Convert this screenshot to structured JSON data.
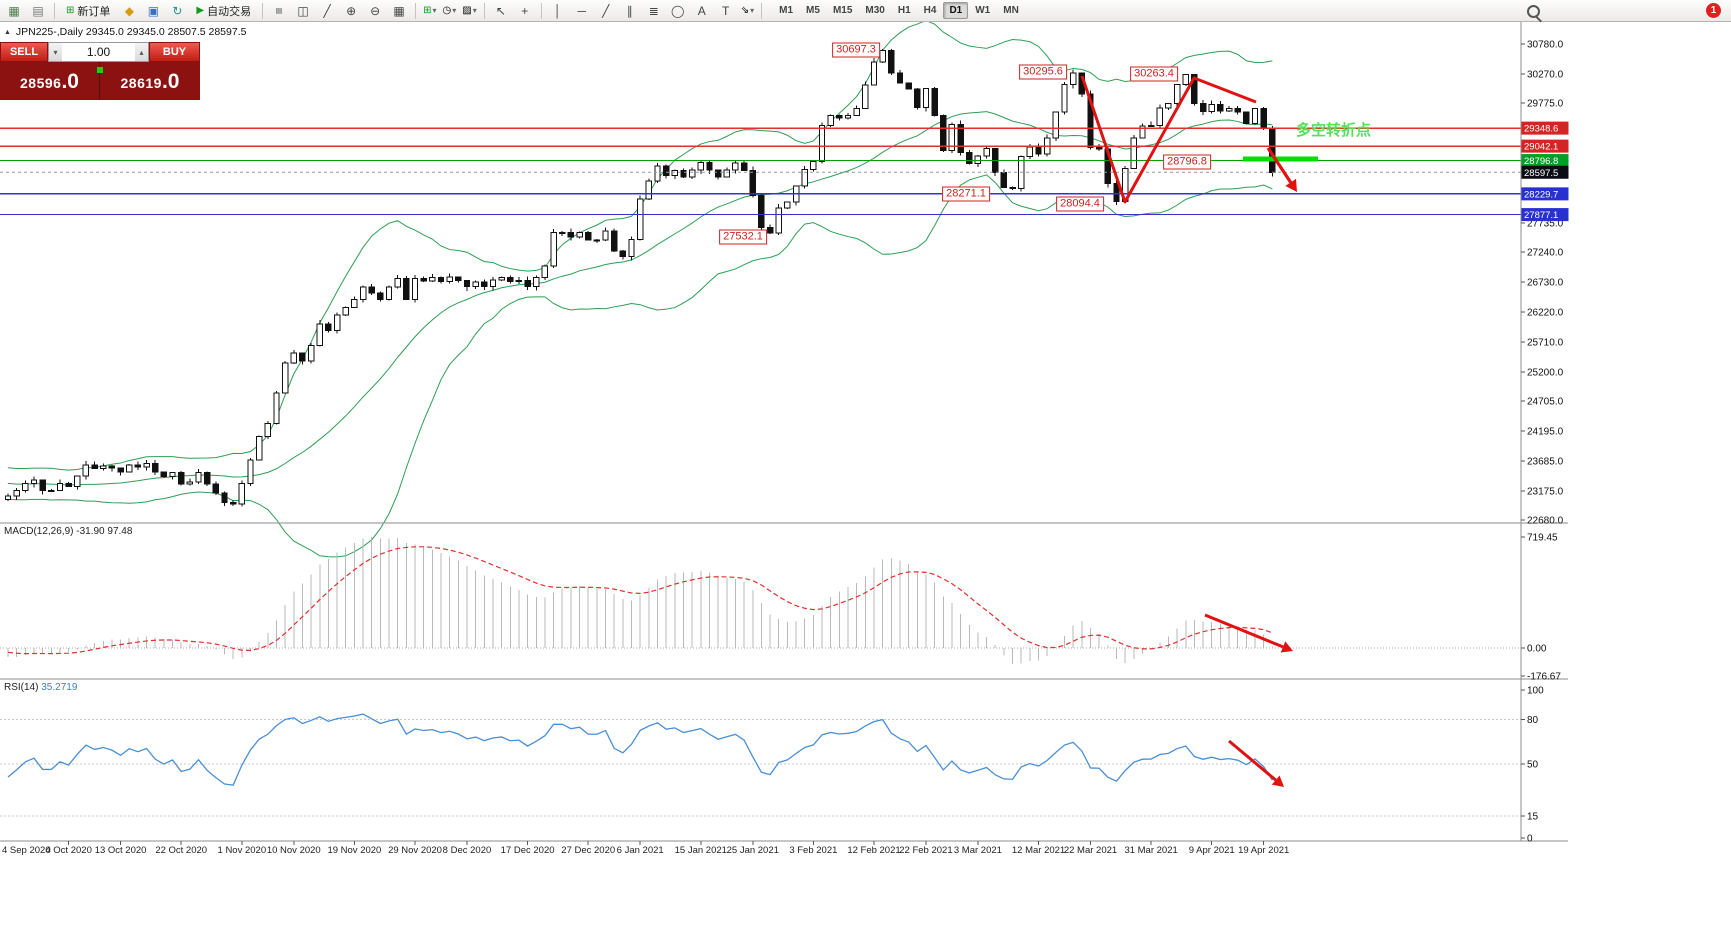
{
  "toolbar": {
    "new_order_label": "新订单",
    "autotrading_label": "自动交易",
    "timeframes": [
      "M1",
      "M5",
      "M15",
      "M30",
      "H1",
      "H4",
      "D1",
      "W1",
      "MN"
    ],
    "active_timeframe": "D1",
    "notification_badge": "1",
    "icons": {
      "new_chart": "▦",
      "profiles": "▤",
      "new_order": "⊞",
      "metaeditor": "◆",
      "market_watch": "▣",
      "refresh": "↻",
      "autotrading_play": "▶",
      "bars": "≡",
      "candles": "◫",
      "line_chart": "╱",
      "zoom_in": "⊕",
      "zoom_out": "⊖",
      "tile": "▦",
      "indicators": "⊞",
      "periods": "◷",
      "templates": "▨",
      "cursor": "↖",
      "crosshair": "+",
      "vline": "│",
      "hline": "─",
      "trendline": "╱",
      "channel": "∥",
      "fibonacci": "≣",
      "shapes": "◯",
      "text": "A",
      "label": "T",
      "arrows": "⇘",
      "dropdown": "▾",
      "collapse": "▲"
    }
  },
  "one_click": {
    "sell_label": "SELL",
    "buy_label": "BUY",
    "volume": "1.00",
    "sell_price_main": "28596",
    "sell_price_frac": ".0",
    "buy_price_main": "28619",
    "buy_price_frac": ".0"
  },
  "chart_title": {
    "symbol_period": "JPN225-,Daily",
    "ohlc": "29345.0 29345.0 28507.5 28597.5"
  },
  "note": {
    "text": "多空转折点"
  },
  "annotations": [
    {
      "text": "30697.3"
    },
    {
      "text": "30295.6"
    },
    {
      "text": "30263.4"
    },
    {
      "text": "28796.8"
    },
    {
      "text": "28271.1"
    },
    {
      "text": "28094.4"
    },
    {
      "text": "27532.1"
    }
  ],
  "hlines": [
    {
      "price": 29348.6,
      "color": "#e03030"
    },
    {
      "price": 29042.1,
      "color": "#e03030"
    },
    {
      "price": 28796.8,
      "color": "#00a000"
    },
    {
      "price": 28229.7,
      "color": "#3333cc"
    },
    {
      "price": 27877.1,
      "color": "#3333cc"
    }
  ],
  "price_scale": {
    "plain": [
      "30780.0",
      "30270.0",
      "29775.0",
      "27735.0",
      "27240.0",
      "26730.0",
      "26220.0",
      "25710.0",
      "25200.0",
      "24705.0",
      "24195.0",
      "23685.0",
      "23175.0",
      "22680.0"
    ],
    "badges": [
      {
        "value": "29348.6",
        "price": 29348.6,
        "type": "red"
      },
      {
        "value": "29042.1",
        "price": 29042.1,
        "type": "red"
      },
      {
        "value": "28796.8",
        "price": 28796.8,
        "type": "green"
      },
      {
        "value": "28597.5",
        "price": 28597.5,
        "type": "current"
      },
      {
        "value": "28229.7",
        "price": 28229.7,
        "type": "blue"
      },
      {
        "value": "27877.1",
        "price": 27877.1,
        "type": "blue"
      }
    ]
  },
  "indicators": {
    "macd_label": "MACD(12,26,9)",
    "macd_values": "-31.90 97.48",
    "macd_scale": [
      "719.45",
      "0.00",
      "-176.67"
    ],
    "rsi_label": "RSI(14)",
    "rsi_value": "35.2719",
    "rsi_scale": [
      "100",
      "80",
      "50",
      "15",
      "0"
    ]
  },
  "dates": [
    "4 Sep 2020",
    "4 Oct 2020",
    "13 Oct 2020",
    "22 Oct 2020",
    "1 Nov 2020",
    "10 Nov 2020",
    "19 Nov 2020",
    "29 Nov 2020",
    "8 Dec 2020",
    "17 Dec 2020",
    "27 Dec 2020",
    "6 Jan 2021",
    "15 Jan 2021",
    "25 Jan 2021",
    "3 Feb 2021",
    "12 Feb 2021",
    "22 Feb 2021",
    "3 Mar 2021",
    "12 Mar 2021",
    "22 Mar 2021",
    "31 Mar 2021",
    "9 Apr 2021",
    "19 Apr 2021"
  ],
  "chart_data": {
    "type": "candlestick",
    "symbol": "JPN225-",
    "timeframe": "Daily",
    "title": "JPN225-,Daily 29345.0 29345.0 28507.5 28597.5",
    "ohlc_current": {
      "open": 29345.0,
      "high": 29345.0,
      "low": 28507.5,
      "close": 28597.5
    },
    "bid": "28596.0",
    "ask": "28619.0",
    "y_axis_range": [
      22680,
      30780
    ],
    "warmup_closes": [
      23350,
      23420,
      23300,
      23250,
      23180,
      23300,
      23460,
      23400,
      23350,
      23500,
      23560,
      23450,
      23400,
      23310,
      23250,
      23200,
      23160,
      23100,
      23220,
      23150
    ],
    "closes": [
      23090,
      23185,
      23300,
      23360,
      23185,
      23185,
      23300,
      23250,
      23430,
      23620,
      23560,
      23600,
      23565,
      23495,
      23620,
      23580,
      23640,
      23495,
      23420,
      23485,
      23295,
      23330,
      23485,
      23295,
      23140,
      22980,
      22950,
      23300,
      23700,
      24100,
      24325,
      24840,
      25350,
      25520,
      25385,
      25650,
      26015,
      25905,
      26165,
      26295,
      26435,
      26645,
      26540,
      26435,
      26645,
      26790,
      26435,
      26790,
      26750,
      26805,
      26735,
      26815,
      26755,
      26650,
      26730,
      26655,
      26765,
      26805,
      26735,
      26755,
      26650,
      26805,
      27000,
      27570,
      27575,
      27495,
      27570,
      27445,
      27445,
      27600,
      27260,
      27160,
      27455,
      28140,
      28445,
      28700,
      28545,
      28630,
      28520,
      28635,
      28760,
      28635,
      28520,
      28635,
      28755,
      28630,
      28205,
      27655,
      27560,
      27990,
      28090,
      28360,
      28645,
      28780,
      29390,
      29565,
      29520,
      29565,
      29685,
      30085,
      30470,
      30670,
      30290,
      30115,
      30015,
      29700,
      30020,
      29560,
      28965,
      29410,
      28930,
      28745,
      28870,
      29000,
      28590,
      28340,
      28320,
      28865,
      29030,
      28905,
      29180,
      29620,
      30095,
      30290,
      29925,
      29015,
      28995,
      28405,
      28100,
      28660,
      29180,
      29385,
      29390,
      29690,
      29765,
      30090,
      30260,
      29770,
      29630,
      29750,
      29640,
      29685,
      29620,
      29430,
      29685,
      29345,
      28597.5
    ],
    "high_overrides": {
      "102": 30697.3,
      "124": 30295.6,
      "137": 30263.4,
      "147": 29345.0
    },
    "low_overrides": {
      "89": 27532.1,
      "117": 28271.1,
      "129": 28094.4,
      "147": 28507.5
    },
    "bollinger_period": 20,
    "bollinger_deviation": 2,
    "macd_params": [
      12,
      26,
      9
    ],
    "rsi_period": 14
  }
}
